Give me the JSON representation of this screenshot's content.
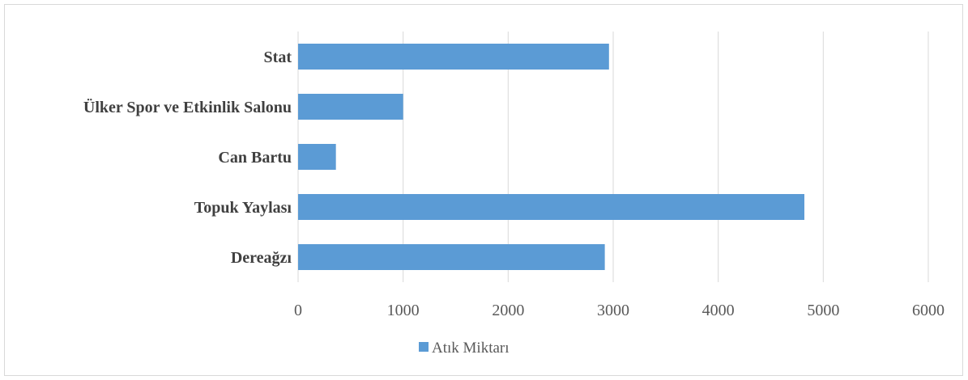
{
  "chart_data": {
    "type": "bar",
    "orientation": "horizontal",
    "categories": [
      "Stat",
      "Ülker Spor ve Etkinlik Salonu",
      "Can Bartu",
      "Topuk Yaylası",
      "Dereağzı"
    ],
    "series": [
      {
        "name": "Atık Miktarı",
        "values": [
          2960,
          1000,
          360,
          4820,
          2920
        ],
        "color": "#5b9bd5"
      }
    ],
    "xlim": [
      0,
      6000
    ],
    "xticks": [
      0,
      1000,
      2000,
      3000,
      4000,
      5000,
      6000
    ],
    "grid": true,
    "legend_position": "bottom",
    "title": "",
    "xlabel": "",
    "ylabel": ""
  },
  "colors": {
    "bar": "#5b9bd5",
    "grid": "#d9d9d9",
    "category_text": "#404040",
    "tick_text": "#595959"
  }
}
